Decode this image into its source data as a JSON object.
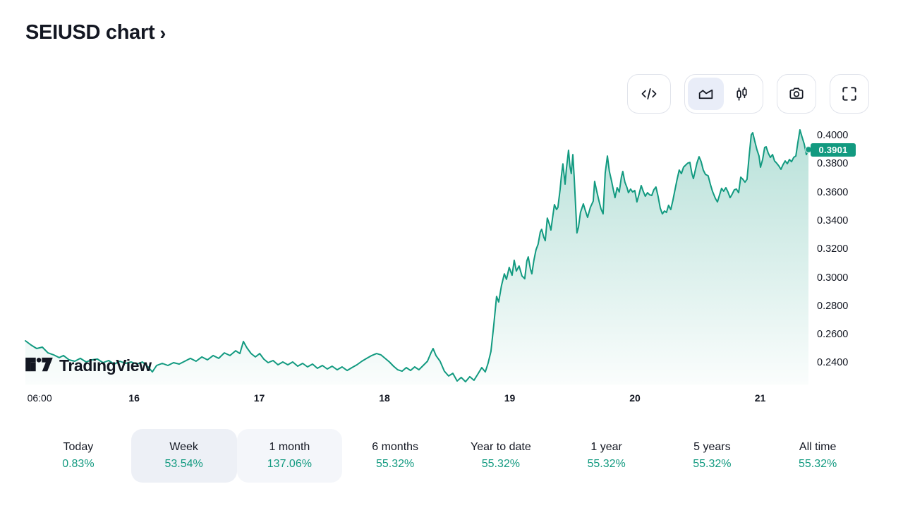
{
  "header": {
    "title": "SEIUSD chart",
    "chevron": "›"
  },
  "colors": {
    "accent": "#129a80",
    "text-dark": "#131722",
    "border": "#e0e3eb",
    "selected-bg": "#edf0f6",
    "soft-bg": "#f4f6fa"
  },
  "toolbar": {
    "buttons": [
      {
        "name": "source-code",
        "icon": "code-icon"
      },
      {
        "name": "chart-type-area",
        "icon": "area-chart-icon",
        "selected": true
      },
      {
        "name": "chart-type-candles",
        "icon": "candlestick-icon",
        "selected": false
      },
      {
        "name": "screenshot",
        "icon": "camera-icon"
      },
      {
        "name": "fullscreen",
        "icon": "fullscreen-icon"
      }
    ]
  },
  "attribution": {
    "brand": "TradingView"
  },
  "chart_data": {
    "type": "area",
    "symbol": "SEIUSD",
    "title": "SEIUSD chart",
    "grid": false,
    "legend_position": "none",
    "line_color": "#129a80",
    "fill_color": "#129a80",
    "current_price": 0.3901,
    "current_price_label": "0.3901",
    "x_unit": "day of month (15th 06:00 through 21st), fractional days",
    "x_domain": [
      15.132,
      21.386
    ],
    "y_domain": [
      0.2248,
      0.406
    ],
    "y_axis_ticks": [
      {
        "label": "0.4000",
        "value": 0.4
      },
      {
        "label": "0.3800",
        "value": 0.38
      },
      {
        "label": "0.3600",
        "value": 0.36
      },
      {
        "label": "0.3400",
        "value": 0.34
      },
      {
        "label": "0.3200",
        "value": 0.32
      },
      {
        "label": "0.3000",
        "value": 0.3
      },
      {
        "label": "0.2800",
        "value": 0.28
      },
      {
        "label": "0.2600",
        "value": 0.26
      },
      {
        "label": "0.2400",
        "value": 0.24
      }
    ],
    "x_axis_ticks": [
      {
        "label": "06:00",
        "value": 15.245,
        "bold": false
      },
      {
        "label": "16",
        "value": 16,
        "bold": true
      },
      {
        "label": "17",
        "value": 17,
        "bold": true
      },
      {
        "label": "18",
        "value": 18,
        "bold": true
      },
      {
        "label": "19",
        "value": 19,
        "bold": true
      },
      {
        "label": "20",
        "value": 20,
        "bold": true
      },
      {
        "label": "21",
        "value": 21,
        "bold": true
      }
    ],
    "series": [
      {
        "name": "SEIUSD price",
        "points": [
          [
            15.132,
            0.2556
          ],
          [
            15.177,
            0.2526
          ],
          [
            15.222,
            0.2501
          ],
          [
            15.267,
            0.2511
          ],
          [
            15.312,
            0.2471
          ],
          [
            15.357,
            0.2457
          ],
          [
            15.402,
            0.2437
          ],
          [
            15.436,
            0.2452
          ],
          [
            15.481,
            0.2422
          ],
          [
            15.526,
            0.2412
          ],
          [
            15.571,
            0.2432
          ],
          [
            15.617,
            0.2407
          ],
          [
            15.662,
            0.2422
          ],
          [
            15.707,
            0.2427
          ],
          [
            15.752,
            0.2402
          ],
          [
            15.797,
            0.2417
          ],
          [
            15.842,
            0.2392
          ],
          [
            15.887,
            0.2412
          ],
          [
            15.932,
            0.2397
          ],
          [
            15.977,
            0.2407
          ],
          [
            16.022,
            0.2392
          ],
          [
            16.067,
            0.2407
          ],
          [
            16.112,
            0.2372
          ],
          [
            16.146,
            0.2337
          ],
          [
            16.18,
            0.2382
          ],
          [
            16.225,
            0.2397
          ],
          [
            16.27,
            0.2382
          ],
          [
            16.315,
            0.2402
          ],
          [
            16.36,
            0.2392
          ],
          [
            16.405,
            0.2412
          ],
          [
            16.45,
            0.2432
          ],
          [
            16.495,
            0.2412
          ],
          [
            16.541,
            0.2442
          ],
          [
            16.586,
            0.2422
          ],
          [
            16.631,
            0.2452
          ],
          [
            16.676,
            0.2432
          ],
          [
            16.721,
            0.2471
          ],
          [
            16.766,
            0.2452
          ],
          [
            16.811,
            0.2486
          ],
          [
            16.845,
            0.2466
          ],
          [
            16.873,
            0.2551
          ],
          [
            16.901,
            0.2506
          ],
          [
            16.935,
            0.2466
          ],
          [
            16.969,
            0.2442
          ],
          [
            17.003,
            0.2466
          ],
          [
            17.036,
            0.2427
          ],
          [
            17.07,
            0.2402
          ],
          [
            17.11,
            0.2417
          ],
          [
            17.149,
            0.2387
          ],
          [
            17.188,
            0.2407
          ],
          [
            17.228,
            0.2387
          ],
          [
            17.267,
            0.2407
          ],
          [
            17.307,
            0.2377
          ],
          [
            17.346,
            0.2397
          ],
          [
            17.385,
            0.2372
          ],
          [
            17.425,
            0.2392
          ],
          [
            17.464,
            0.2362
          ],
          [
            17.504,
            0.2382
          ],
          [
            17.543,
            0.2357
          ],
          [
            17.582,
            0.2377
          ],
          [
            17.622,
            0.2352
          ],
          [
            17.661,
            0.2372
          ],
          [
            17.701,
            0.2347
          ],
          [
            17.74,
            0.2367
          ],
          [
            17.78,
            0.2387
          ],
          [
            17.819,
            0.2412
          ],
          [
            17.858,
            0.2432
          ],
          [
            17.898,
            0.2452
          ],
          [
            17.937,
            0.2466
          ],
          [
            17.971,
            0.2457
          ],
          [
            18.005,
            0.2432
          ],
          [
            18.039,
            0.2407
          ],
          [
            18.072,
            0.2377
          ],
          [
            18.106,
            0.2352
          ],
          [
            18.14,
            0.2342
          ],
          [
            18.174,
            0.2367
          ],
          [
            18.208,
            0.2347
          ],
          [
            18.241,
            0.2372
          ],
          [
            18.275,
            0.2352
          ],
          [
            18.309,
            0.2382
          ],
          [
            18.343,
            0.2412
          ],
          [
            18.371,
            0.2471
          ],
          [
            18.388,
            0.2501
          ],
          [
            18.411,
            0.2452
          ],
          [
            18.444,
            0.2412
          ],
          [
            18.478,
            0.2342
          ],
          [
            18.512,
            0.2308
          ],
          [
            18.546,
            0.2327
          ],
          [
            18.58,
            0.2273
          ],
          [
            18.613,
            0.2298
          ],
          [
            18.647,
            0.2268
          ],
          [
            18.681,
            0.2303
          ],
          [
            18.715,
            0.2278
          ],
          [
            18.749,
            0.2327
          ],
          [
            18.777,
            0.2367
          ],
          [
            18.805,
            0.2337
          ],
          [
            18.827,
            0.2397
          ],
          [
            18.85,
            0.2481
          ],
          [
            18.873,
            0.267
          ],
          [
            18.895,
            0.2868
          ],
          [
            18.912,
            0.2829
          ],
          [
            18.934,
            0.2943
          ],
          [
            18.957,
            0.3027
          ],
          [
            18.974,
            0.2988
          ],
          [
            18.996,
            0.3072
          ],
          [
            19.019,
            0.3017
          ],
          [
            19.036,
            0.3122
          ],
          [
            19.053,
            0.3047
          ],
          [
            19.075,
            0.3082
          ],
          [
            19.098,
            0.3012
          ],
          [
            19.12,
            0.2992
          ],
          [
            19.137,
            0.3117
          ],
          [
            19.148,
            0.3146
          ],
          [
            19.165,
            0.3062
          ],
          [
            19.177,
            0.3027
          ],
          [
            19.193,
            0.3122
          ],
          [
            19.21,
            0.3196
          ],
          [
            19.227,
            0.3236
          ],
          [
            19.244,
            0.332
          ],
          [
            19.255,
            0.334
          ],
          [
            19.272,
            0.3285
          ],
          [
            19.284,
            0.326
          ],
          [
            19.3,
            0.3419
          ],
          [
            19.317,
            0.3375
          ],
          [
            19.329,
            0.3335
          ],
          [
            19.346,
            0.3444
          ],
          [
            19.357,
            0.3514
          ],
          [
            19.374,
            0.3479
          ],
          [
            19.385,
            0.3494
          ],
          [
            19.402,
            0.3618
          ],
          [
            19.413,
            0.3717
          ],
          [
            19.425,
            0.3801
          ],
          [
            19.442,
            0.3658
          ],
          [
            19.453,
            0.3767
          ],
          [
            19.47,
            0.3896
          ],
          [
            19.481,
            0.3782
          ],
          [
            19.492,
            0.3732
          ],
          [
            19.504,
            0.3866
          ],
          [
            19.515,
            0.3707
          ],
          [
            19.526,
            0.3509
          ],
          [
            19.537,
            0.3315
          ],
          [
            19.549,
            0.3355
          ],
          [
            19.565,
            0.3459
          ],
          [
            19.588,
            0.3519
          ],
          [
            19.605,
            0.3469
          ],
          [
            19.622,
            0.3424
          ],
          [
            19.644,
            0.3494
          ],
          [
            19.667,
            0.3538
          ],
          [
            19.678,
            0.3677
          ],
          [
            19.695,
            0.3608
          ],
          [
            19.712,
            0.3543
          ],
          [
            19.729,
            0.3484
          ],
          [
            19.746,
            0.3449
          ],
          [
            19.763,
            0.3737
          ],
          [
            19.78,
            0.3856
          ],
          [
            19.796,
            0.3747
          ],
          [
            19.813,
            0.3682
          ],
          [
            19.83,
            0.3608
          ],
          [
            19.841,
            0.3563
          ],
          [
            19.858,
            0.3633
          ],
          [
            19.875,
            0.3603
          ],
          [
            19.892,
            0.3707
          ],
          [
            19.903,
            0.3747
          ],
          [
            19.92,
            0.3672
          ],
          [
            19.937,
            0.3633
          ],
          [
            19.948,
            0.3598
          ],
          [
            19.965,
            0.3623
          ],
          [
            19.982,
            0.3603
          ],
          [
            19.999,
            0.3613
          ],
          [
            20.016,
            0.3533
          ],
          [
            20.033,
            0.3588
          ],
          [
            20.05,
            0.3648
          ],
          [
            20.066,
            0.3608
          ],
          [
            20.083,
            0.3573
          ],
          [
            20.1,
            0.3598
          ],
          [
            20.117,
            0.3583
          ],
          [
            20.134,
            0.3578
          ],
          [
            20.151,
            0.3618
          ],
          [
            20.168,
            0.3638
          ],
          [
            20.185,
            0.3573
          ],
          [
            20.202,
            0.3489
          ],
          [
            20.219,
            0.3449
          ],
          [
            20.236,
            0.3469
          ],
          [
            20.252,
            0.3459
          ],
          [
            20.269,
            0.3509
          ],
          [
            20.286,
            0.3479
          ],
          [
            20.303,
            0.3543
          ],
          [
            20.32,
            0.3618
          ],
          [
            20.337,
            0.3692
          ],
          [
            20.354,
            0.3757
          ],
          [
            20.371,
            0.3732
          ],
          [
            20.388,
            0.3777
          ],
          [
            20.405,
            0.3792
          ],
          [
            20.422,
            0.3806
          ],
          [
            20.439,
            0.3811
          ],
          [
            20.455,
            0.3732
          ],
          [
            20.467,
            0.3697
          ],
          [
            20.484,
            0.3762
          ],
          [
            20.495,
            0.3806
          ],
          [
            20.512,
            0.3851
          ],
          [
            20.529,
            0.3816
          ],
          [
            20.546,
            0.3757
          ],
          [
            20.563,
            0.3727
          ],
          [
            20.585,
            0.3717
          ],
          [
            20.602,
            0.3658
          ],
          [
            20.619,
            0.3608
          ],
          [
            20.642,
            0.3558
          ],
          [
            20.659,
            0.3533
          ],
          [
            20.676,
            0.3583
          ],
          [
            20.692,
            0.3628
          ],
          [
            20.709,
            0.3608
          ],
          [
            20.726,
            0.3633
          ],
          [
            20.743,
            0.3603
          ],
          [
            20.76,
            0.3563
          ],
          [
            20.777,
            0.3588
          ],
          [
            20.794,
            0.3618
          ],
          [
            20.811,
            0.3623
          ],
          [
            20.828,
            0.3598
          ],
          [
            20.845,
            0.3707
          ],
          [
            20.862,
            0.3692
          ],
          [
            20.879,
            0.3672
          ],
          [
            20.895,
            0.3692
          ],
          [
            20.912,
            0.3856
          ],
          [
            20.929,
            0.4005
          ],
          [
            20.941,
            0.402
          ],
          [
            20.957,
            0.396
          ],
          [
            20.974,
            0.3901
          ],
          [
            20.991,
            0.3856
          ],
          [
            21.003,
            0.3777
          ],
          [
            21.02,
            0.3831
          ],
          [
            21.036,
            0.3916
          ],
          [
            21.048,
            0.3921
          ],
          [
            21.065,
            0.3876
          ],
          [
            21.082,
            0.3846
          ],
          [
            21.099,
            0.3866
          ],
          [
            21.115,
            0.3821
          ],
          [
            21.132,
            0.3806
          ],
          [
            21.149,
            0.3787
          ],
          [
            21.166,
            0.3762
          ],
          [
            21.183,
            0.3796
          ],
          [
            21.2,
            0.3821
          ],
          [
            21.217,
            0.3802
          ],
          [
            21.234,
            0.3831
          ],
          [
            21.251,
            0.3816
          ],
          [
            21.268,
            0.3846
          ],
          [
            21.285,
            0.3856
          ],
          [
            21.302,
            0.3955
          ],
          [
            21.318,
            0.404
          ],
          [
            21.335,
            0.399
          ],
          [
            21.352,
            0.394
          ],
          [
            21.369,
            0.3866
          ],
          [
            21.386,
            0.3901
          ]
        ]
      }
    ]
  },
  "ranges": {
    "items": [
      {
        "label": "Today",
        "change": "0.83%",
        "highlight": ""
      },
      {
        "label": "Week",
        "change": "53.54%",
        "highlight": "selected"
      },
      {
        "label": "1 month",
        "change": "137.06%",
        "highlight": "soft"
      },
      {
        "label": "6 months",
        "change": "55.32%",
        "highlight": ""
      },
      {
        "label": "Year to date",
        "change": "55.32%",
        "highlight": ""
      },
      {
        "label": "1 year",
        "change": "55.32%",
        "highlight": ""
      },
      {
        "label": "5 years",
        "change": "55.32%",
        "highlight": ""
      },
      {
        "label": "All time",
        "change": "55.32%",
        "highlight": ""
      }
    ]
  }
}
